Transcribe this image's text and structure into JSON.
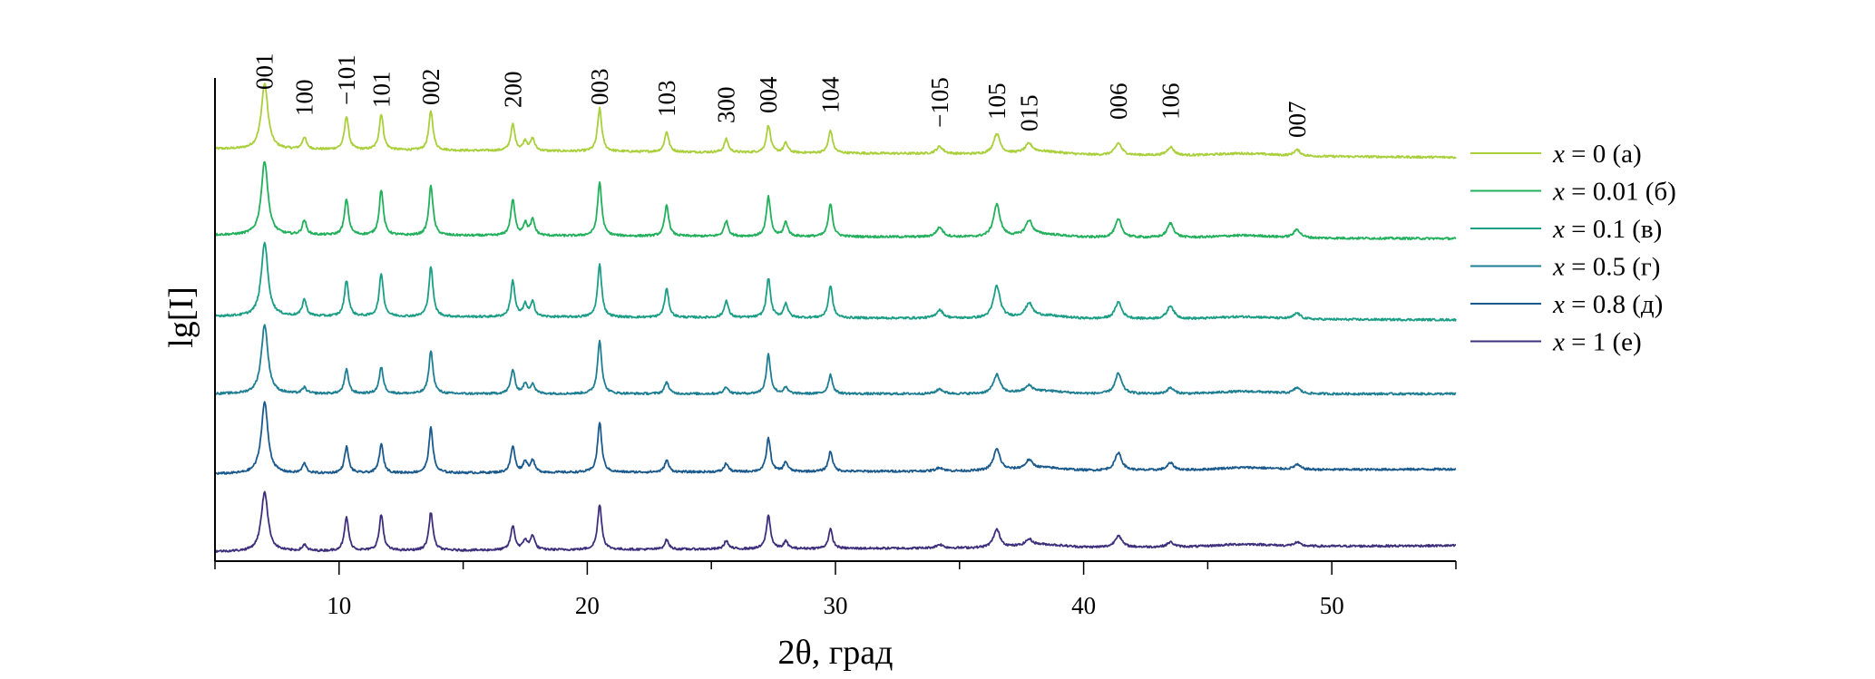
{
  "chart_data": {
    "type": "line",
    "title": "",
    "xlabel": "2θ, град",
    "ylabel": "lg[I]",
    "xlim": [
      5,
      55
    ],
    "xticks": [
      10,
      20,
      30,
      40,
      50
    ],
    "grid": false,
    "legend_position": "right",
    "y_units": "arbitrary (stacked, offset)",
    "peak_labels": [
      {
        "hkl": "001",
        "x": 7.0
      },
      {
        "hkl": "100",
        "x": 8.6
      },
      {
        "hkl": "−101",
        "x": 10.3
      },
      {
        "hkl": "101",
        "x": 11.7
      },
      {
        "hkl": "002",
        "x": 13.7
      },
      {
        "hkl": "200",
        "x": 17.0
      },
      {
        "hkl": "003",
        "x": 20.5
      },
      {
        "hkl": "103",
        "x": 23.2
      },
      {
        "hkl": "300",
        "x": 25.6
      },
      {
        "hkl": "004",
        "x": 27.3
      },
      {
        "hkl": "104",
        "x": 29.8
      },
      {
        "hkl": "−105",
        "x": 34.2
      },
      {
        "hkl": "105",
        "x": 36.5
      },
      {
        "hkl": "015",
        "x": 37.8
      },
      {
        "hkl": "006",
        "x": 41.4
      },
      {
        "hkl": "106",
        "x": 43.5
      },
      {
        "hkl": "007",
        "x": 48.6
      }
    ],
    "peak_positions": [
      7.0,
      8.6,
      10.3,
      11.7,
      13.7,
      17.0,
      17.5,
      17.8,
      20.5,
      23.2,
      25.6,
      27.3,
      28.0,
      29.8,
      34.2,
      36.5,
      37.8,
      41.4,
      43.5,
      48.6
    ],
    "series": [
      {
        "name": "x = 0 (а)",
        "color": "#a9cf3a",
        "offset": 345,
        "drift": -7,
        "heights": [
          55,
          10,
          28,
          30,
          33,
          22,
          8,
          10,
          36,
          17,
          11,
          23,
          8,
          19,
          6,
          17,
          7,
          10,
          7,
          5
        ]
      },
      {
        "name": "x = 0.01 (б)",
        "color": "#22b05c",
        "offset": 273,
        "drift": -3,
        "heights": [
          62,
          12,
          30,
          38,
          42,
          30,
          10,
          13,
          45,
          26,
          13,
          33,
          12,
          28,
          8,
          27,
          12,
          15,
          12,
          7
        ]
      },
      {
        "name": "x = 0.1 (в)",
        "color": "#1c9e86",
        "offset": 205,
        "drift": -3,
        "heights": [
          62,
          14,
          30,
          36,
          42,
          30,
          10,
          12,
          44,
          24,
          14,
          33,
          12,
          27,
          7,
          27,
          11,
          14,
          11,
          5
        ]
      },
      {
        "name": "x = 0.5 (г)",
        "color": "#1e7e92",
        "offset": 140,
        "drift": 0,
        "heights": [
          58,
          5,
          20,
          22,
          36,
          20,
          8,
          8,
          45,
          10,
          6,
          33,
          5,
          16,
          4,
          16,
          5,
          17,
          5,
          5
        ]
      },
      {
        "name": "x = 0.8 (д)",
        "color": "#1b5a8d",
        "offset": 73,
        "drift": 4,
        "heights": [
          60,
          8,
          22,
          24,
          38,
          22,
          9,
          10,
          42,
          10,
          7,
          28,
          8,
          17,
          3,
          18,
          7,
          15,
          6,
          4
        ]
      },
      {
        "name": "x = 1 (е)",
        "color": "#3e2f7c",
        "offset": 8,
        "drift": 5,
        "heights": [
          50,
          5,
          28,
          30,
          32,
          20,
          8,
          12,
          38,
          8,
          7,
          28,
          6,
          16,
          3,
          15,
          5,
          10,
          4,
          3
        ]
      }
    ]
  }
}
